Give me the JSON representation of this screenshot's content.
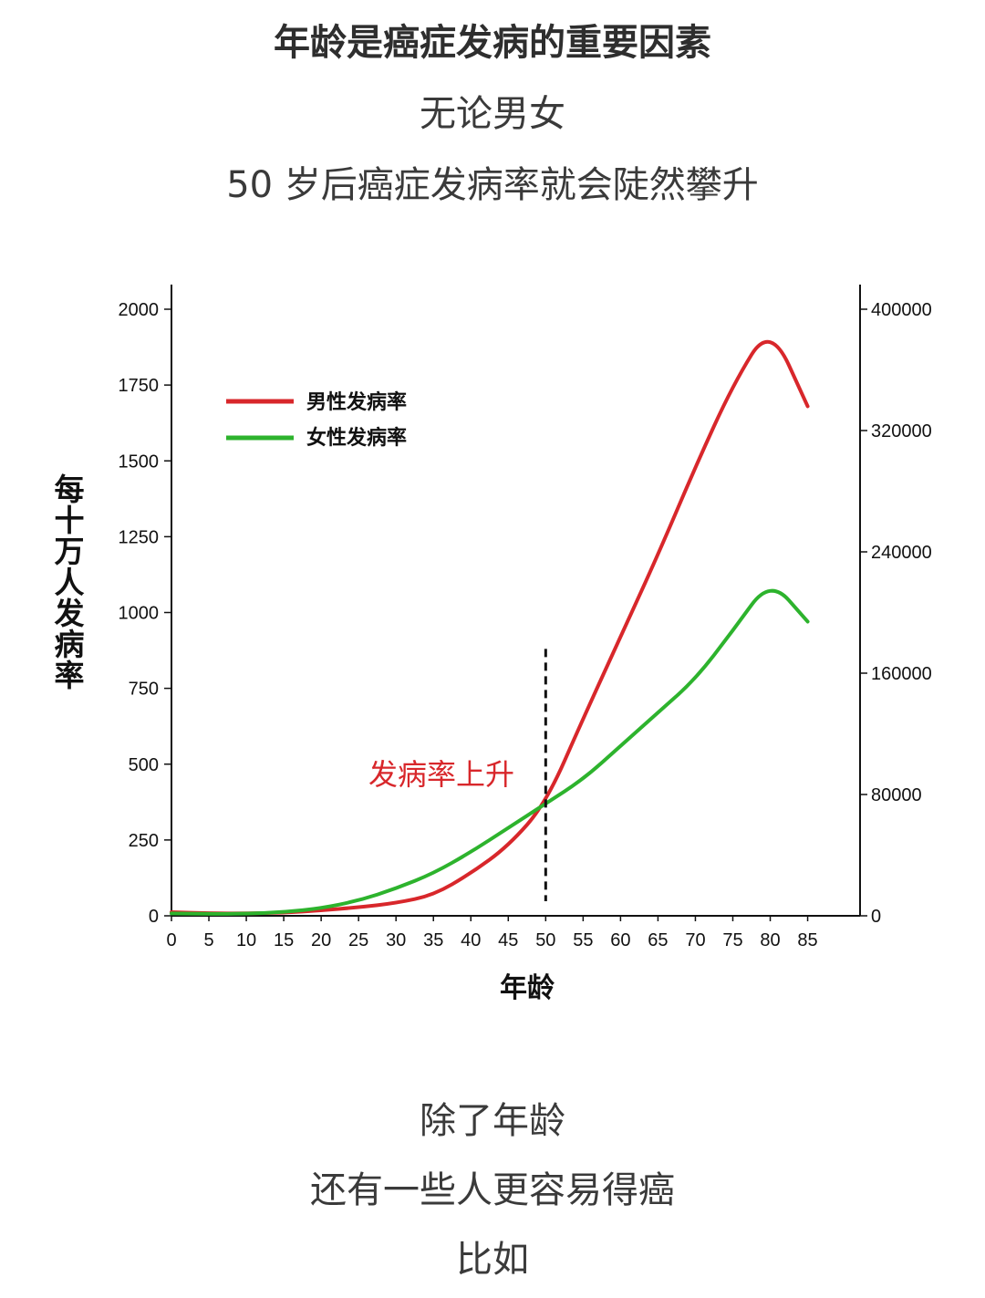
{
  "page": {
    "title": "年龄是癌症发病的重要因素",
    "subtitle1": "无论男女",
    "subtitle2": "50 岁后癌症发病率就会陡然攀升",
    "bottom1": "除了年龄",
    "bottom2": "还有一些人更容易得癌",
    "bottom3": "比如"
  },
  "chart_data": {
    "type": "line",
    "title": "",
    "xlabel": "年龄",
    "ylabel": "每十万人发病率",
    "x": [
      0,
      5,
      10,
      15,
      20,
      25,
      30,
      35,
      40,
      45,
      50,
      55,
      60,
      65,
      70,
      75,
      80,
      85
    ],
    "xticks": [
      "0",
      "5",
      "10",
      "15",
      "20",
      "25",
      "30",
      "35",
      "40",
      "45",
      "50",
      "55",
      "60",
      "65",
      "70",
      "75",
      "80",
      "85"
    ],
    "ylim": [
      0,
      2000
    ],
    "yticks": [
      "0",
      "250",
      "500",
      "750",
      "1000",
      "1250",
      "1500",
      "1750",
      "2000"
    ],
    "y2lim": [
      0,
      400000
    ],
    "y2ticks": [
      "0",
      "80000",
      "160000",
      "240000",
      "320000",
      "400000"
    ],
    "series": [
      {
        "name": "男性发病率",
        "color": "#d8272b",
        "values": [
          12,
          8,
          8,
          10,
          18,
          28,
          42,
          68,
          140,
          230,
          370,
          650,
          920,
          1190,
          1480,
          1750,
          1950,
          1680
        ]
      },
      {
        "name": "女性发病率",
        "color": "#2db32d",
        "values": [
          8,
          6,
          7,
          12,
          25,
          50,
          90,
          140,
          210,
          290,
          370,
          450,
          560,
          670,
          780,
          940,
          1110,
          970
        ]
      }
    ],
    "annotations": [
      {
        "text": "发病率上升",
        "x": 50,
        "y": 500
      }
    ],
    "marker_x": 50,
    "grid": false,
    "legend": "top-left"
  }
}
